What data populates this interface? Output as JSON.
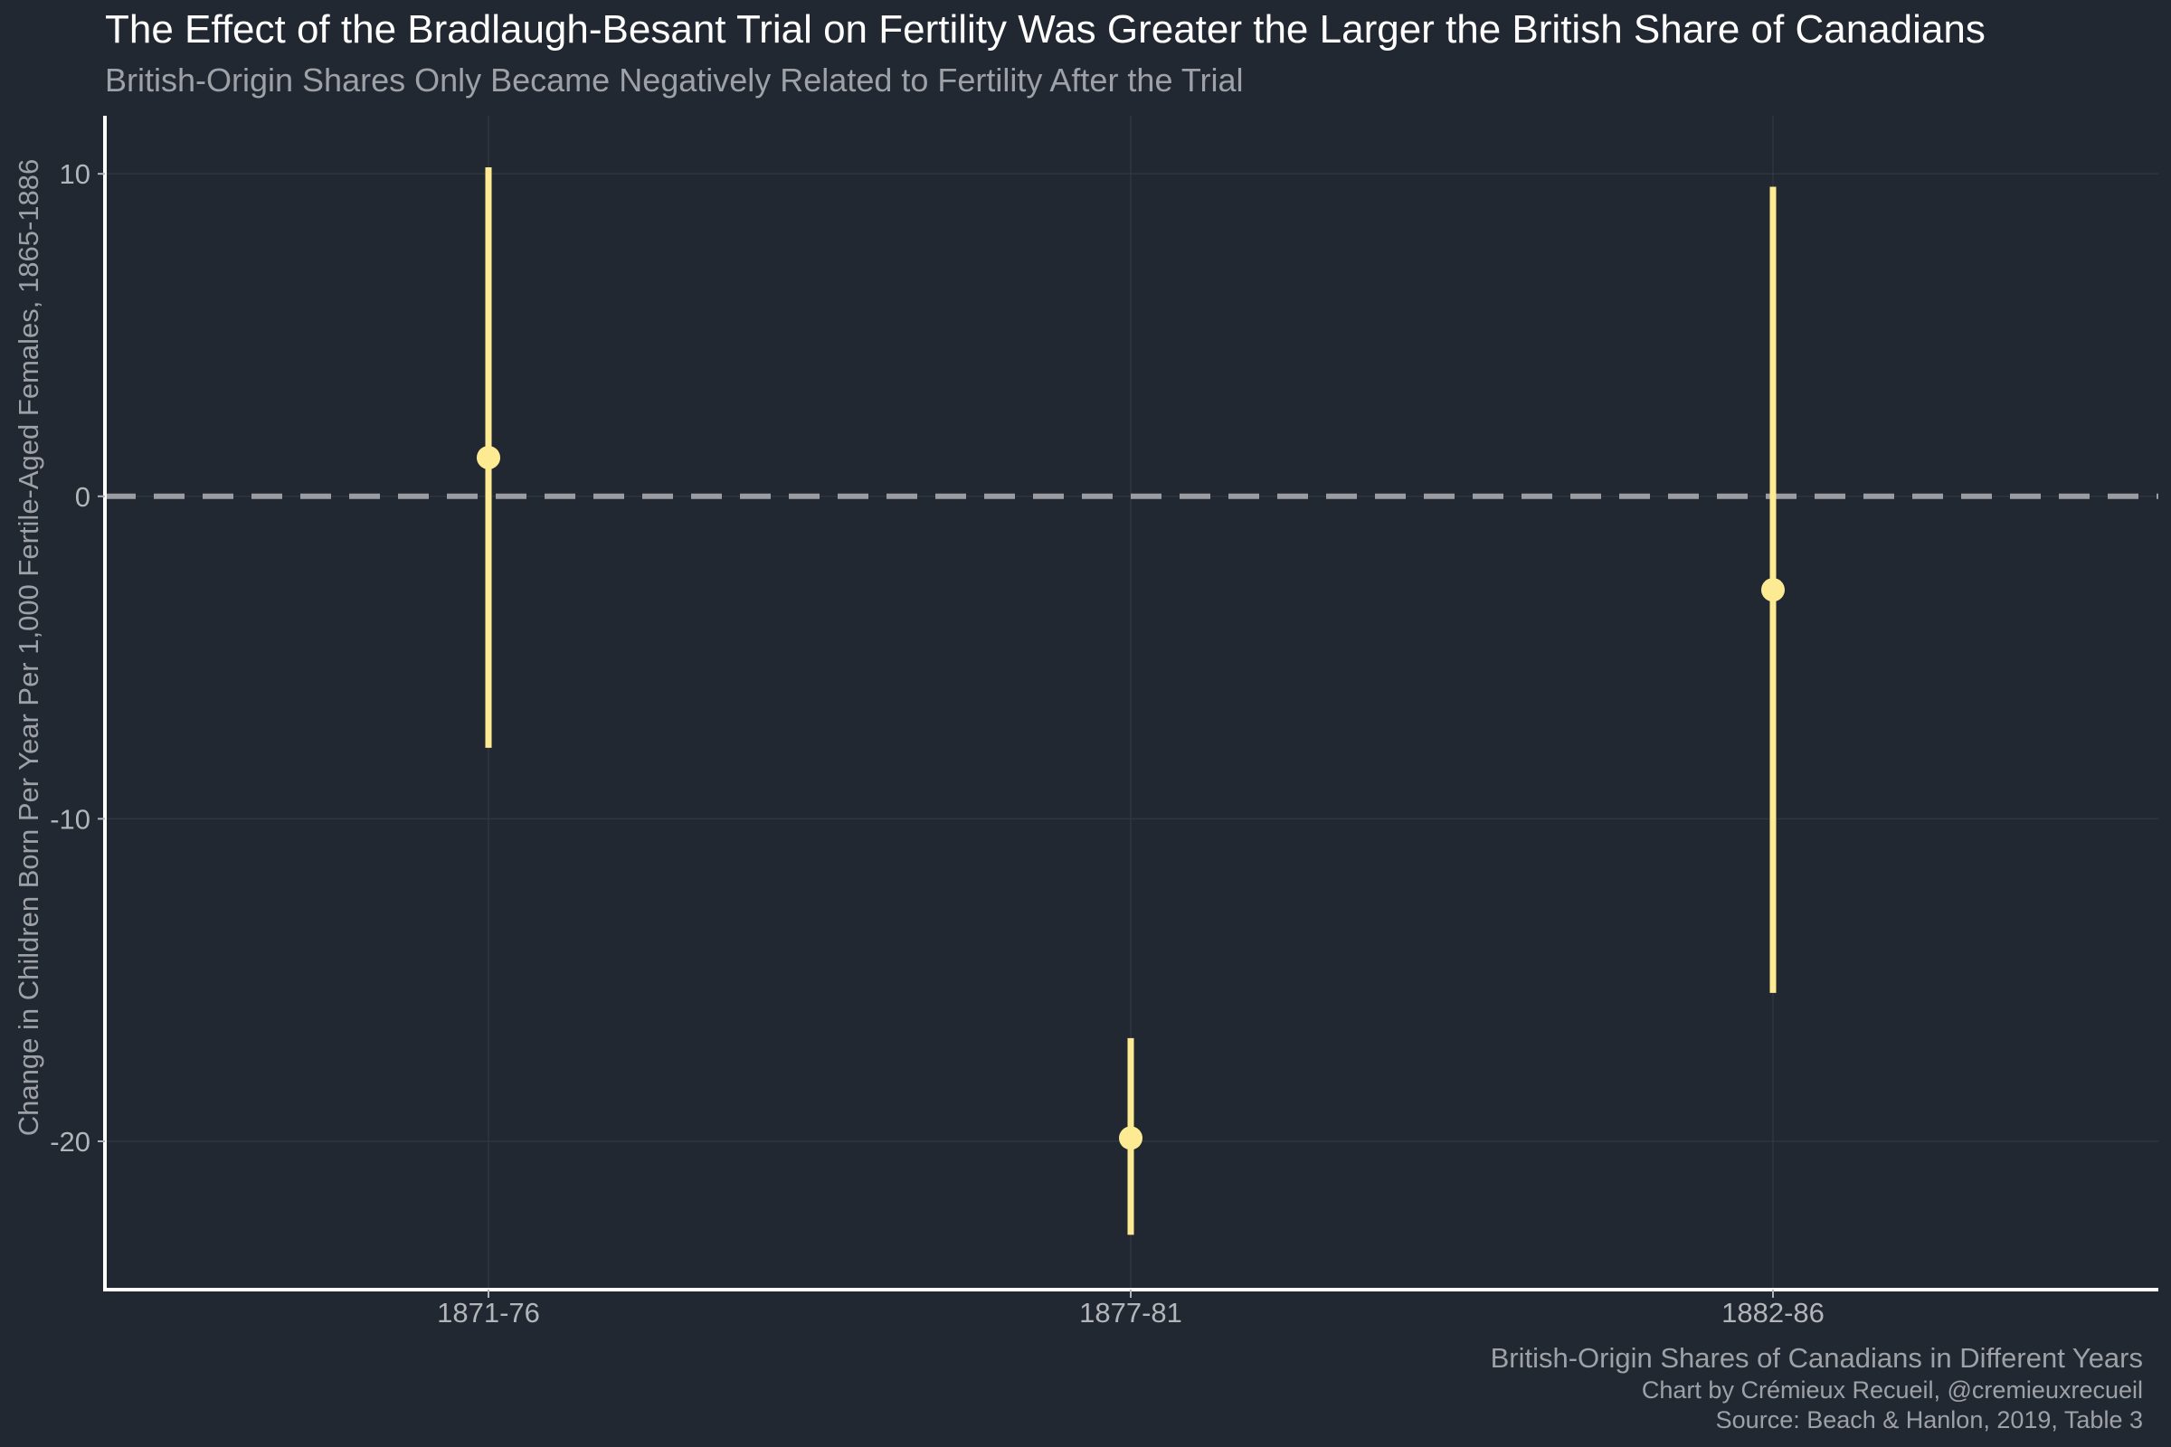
{
  "chart_data": {
    "type": "scatter",
    "title": "The Effect of the Bradlaugh-Besant Trial on Fertility Was Greater the Larger the British Share of Canadians",
    "subtitle": "British-Origin Shares Only Became Negatively Related to Fertility After the Trial",
    "xlabel": "British-Origin Shares of Canadians in Different Years",
    "ylabel": "Change in Children Born Per Year Per 1,000 Fertile-Aged Females, 1865-1886",
    "categories": [
      "1871-76",
      "1877-81",
      "1882-86"
    ],
    "series": [
      {
        "values": [
          1.2,
          -19.9,
          -2.9
        ],
        "lower": [
          -7.8,
          -22.9,
          -15.4
        ],
        "upper": [
          10.2,
          -16.8,
          9.6
        ]
      }
    ],
    "reference_line": {
      "y": 0,
      "style": "dashed"
    },
    "yticks": [
      10,
      0,
      -10,
      -20
    ],
    "ylim": [
      -24.6,
      11.8
    ],
    "grid": true,
    "legend": "none",
    "caption": [
      "Chart by Crémieux Recueil, @cremieuxrecueil",
      "Source: Beach & Hanlon, 2019, Table 3"
    ],
    "colors": {
      "background": "#222831",
      "point": "#fdeb93",
      "interval": "#fdeb93",
      "reference_line": "#9a9ca2",
      "axis_line": "#ffffff",
      "grid": "#30363f"
    }
  }
}
